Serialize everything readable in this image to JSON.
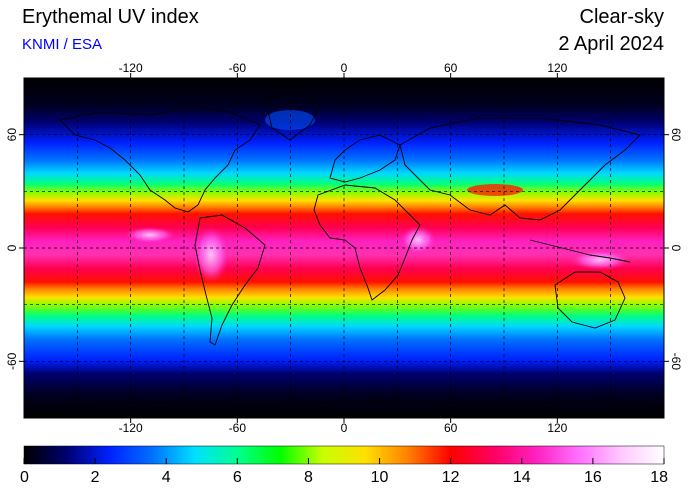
{
  "header": {
    "title": "Erythemal UV index",
    "source": "KNMI / ESA",
    "mode": "Clear-sky",
    "date": "2 April 2024"
  },
  "map": {
    "projection": "equirectangular",
    "lon_range": [
      -180,
      180
    ],
    "lat_range": [
      -90,
      90
    ],
    "lon_ticks": [
      -120,
      -60,
      0,
      60,
      120
    ],
    "lat_ticks": [
      60,
      0,
      -60
    ],
    "grid": "dashed",
    "grid_lon_step": 30,
    "grid_lat_step": 30,
    "continent_outlines": true
  },
  "colorbar": {
    "min": 0,
    "max": 18,
    "ticks": [
      0,
      2,
      4,
      6,
      8,
      10,
      12,
      14,
      16,
      18
    ],
    "colors": [
      "#000000",
      "#000070",
      "#0020ff",
      "#0070ff",
      "#00e0ff",
      "#00ff90",
      "#00ff00",
      "#c8ff00",
      "#ffe000",
      "#ff8000",
      "#ff0000",
      "#ff0060",
      "#ff20c0",
      "#ff70ff",
      "#ffc8ff",
      "#ffffff"
    ]
  }
}
